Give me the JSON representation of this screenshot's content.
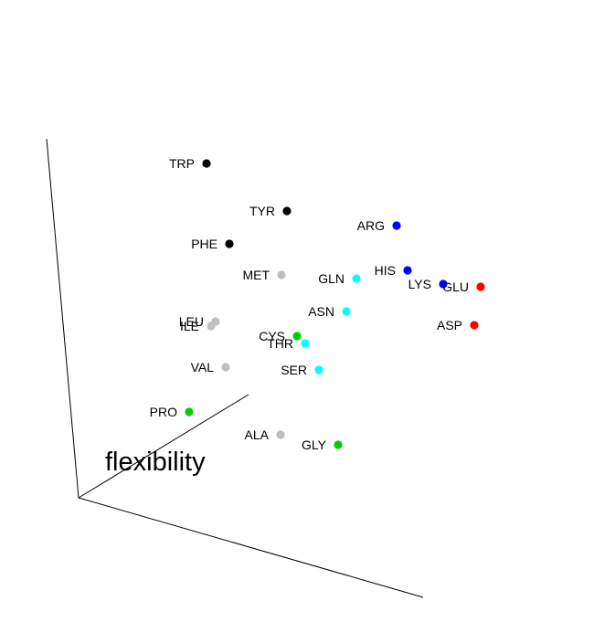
{
  "chart_data": {
    "type": "scatter",
    "projection": "3d",
    "axis_title": "flexibility",
    "series": [
      {
        "color": "#000000",
        "points": [
          {
            "label": "TRP"
          },
          {
            "label": "TYR"
          },
          {
            "label": "PHE"
          }
        ]
      },
      {
        "color": "#0000ff",
        "points": [
          {
            "label": "ARG"
          },
          {
            "label": "HIS"
          },
          {
            "label": "LYS"
          }
        ]
      },
      {
        "color": "#ff0000",
        "points": [
          {
            "label": "GLU"
          },
          {
            "label": "ASP"
          }
        ]
      },
      {
        "color": "#00ffff",
        "points": [
          {
            "label": "GLN"
          },
          {
            "label": "ASN"
          },
          {
            "label": "THR"
          },
          {
            "label": "SER"
          }
        ]
      },
      {
        "color": "#bebebe",
        "points": [
          {
            "label": "MET"
          },
          {
            "label": "LEU"
          },
          {
            "label": "ILE"
          },
          {
            "label": "VAL"
          },
          {
            "label": "ALA"
          }
        ]
      },
      {
        "color": "#00cd00",
        "points": [
          {
            "label": "CYS"
          },
          {
            "label": "PRO"
          },
          {
            "label": "GLY"
          }
        ]
      }
    ]
  }
}
